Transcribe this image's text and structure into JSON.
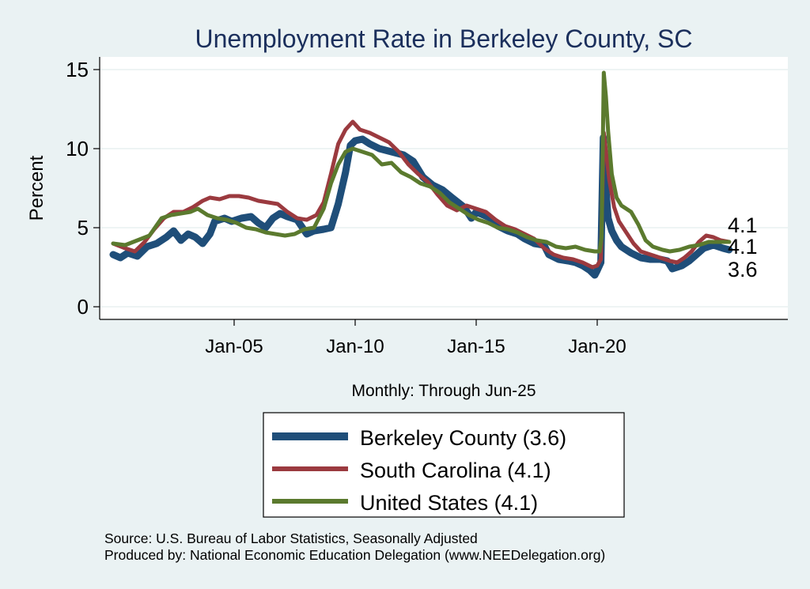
{
  "chart_data": {
    "type": "line",
    "title": "Unemployment Rate in Berkeley  County, SC",
    "xlabel": "Monthly: Through Jun-25",
    "ylabel": "Percent",
    "ylim": [
      0,
      15
    ],
    "yticks": [
      0,
      5,
      10,
      15
    ],
    "xlim": [
      2000.0,
      2026.8
    ],
    "xticks": [
      {
        "label": "Jan-05",
        "value": 2005
      },
      {
        "label": "Jan-10",
        "value": 2010
      },
      {
        "label": "Jan-15",
        "value": 2015
      },
      {
        "label": "Jan-20",
        "value": 2020
      }
    ],
    "grid": true,
    "legend_position": "bottom",
    "end_labels": [
      "4.1",
      "4.1",
      "3.6"
    ],
    "series": [
      {
        "name": "Berkeley  County",
        "legend": "Berkeley  County (3.6)",
        "color": "#1f4e79",
        "points": [
          [
            2000.0,
            3.3
          ],
          [
            2000.3,
            3.1
          ],
          [
            2000.6,
            3.4
          ],
          [
            2001.0,
            3.2
          ],
          [
            2001.4,
            3.8
          ],
          [
            2001.8,
            4.0
          ],
          [
            2002.2,
            4.4
          ],
          [
            2002.5,
            4.8
          ],
          [
            2002.8,
            4.2
          ],
          [
            2003.1,
            4.6
          ],
          [
            2003.4,
            4.4
          ],
          [
            2003.7,
            4.0
          ],
          [
            2004.0,
            4.6
          ],
          [
            2004.2,
            5.4
          ],
          [
            2004.6,
            5.6
          ],
          [
            2004.9,
            5.4
          ],
          [
            2005.3,
            5.6
          ],
          [
            2005.7,
            5.7
          ],
          [
            2006.0,
            5.3
          ],
          [
            2006.3,
            5.0
          ],
          [
            2006.6,
            5.6
          ],
          [
            2006.9,
            5.9
          ],
          [
            2007.2,
            5.7
          ],
          [
            2007.6,
            5.5
          ],
          [
            2008.0,
            4.6
          ],
          [
            2008.3,
            4.8
          ],
          [
            2008.7,
            4.9
          ],
          [
            2009.0,
            5.0
          ],
          [
            2009.3,
            6.5
          ],
          [
            2009.6,
            8.5
          ],
          [
            2009.8,
            10.2
          ],
          [
            2010.0,
            10.5
          ],
          [
            2010.3,
            10.6
          ],
          [
            2010.6,
            10.3
          ],
          [
            2011.0,
            10.0
          ],
          [
            2011.5,
            9.8
          ],
          [
            2012.0,
            9.6
          ],
          [
            2012.4,
            9.2
          ],
          [
            2012.8,
            8.2
          ],
          [
            2013.2,
            7.7
          ],
          [
            2013.6,
            7.4
          ],
          [
            2014.0,
            6.9
          ],
          [
            2014.5,
            6.3
          ],
          [
            2014.8,
            5.6
          ],
          [
            2015.0,
            6.0
          ],
          [
            2015.3,
            5.8
          ],
          [
            2015.6,
            5.6
          ],
          [
            2015.9,
            5.1
          ],
          [
            2016.3,
            4.8
          ],
          [
            2016.7,
            4.6
          ],
          [
            2017.0,
            4.3
          ],
          [
            2017.4,
            4.0
          ],
          [
            2017.8,
            3.9
          ],
          [
            2018.0,
            3.3
          ],
          [
            2018.4,
            3.0
          ],
          [
            2018.8,
            2.9
          ],
          [
            2019.1,
            2.8
          ],
          [
            2019.4,
            2.6
          ],
          [
            2019.7,
            2.3
          ],
          [
            2019.9,
            2.0
          ],
          [
            2020.0,
            2.3
          ],
          [
            2020.15,
            2.8
          ],
          [
            2020.25,
            10.7
          ],
          [
            2020.33,
            8.0
          ],
          [
            2020.45,
            5.6
          ],
          [
            2020.6,
            4.8
          ],
          [
            2020.8,
            4.2
          ],
          [
            2021.0,
            3.8
          ],
          [
            2021.4,
            3.4
          ],
          [
            2021.8,
            3.1
          ],
          [
            2022.2,
            3.0
          ],
          [
            2022.6,
            3.0
          ],
          [
            2022.9,
            2.9
          ],
          [
            2023.1,
            2.4
          ],
          [
            2023.5,
            2.6
          ],
          [
            2023.8,
            2.9
          ],
          [
            2024.1,
            3.3
          ],
          [
            2024.4,
            3.7
          ],
          [
            2024.8,
            3.9
          ],
          [
            2025.0,
            3.8
          ],
          [
            2025.2,
            3.7
          ],
          [
            2025.45,
            3.6
          ]
        ]
      },
      {
        "name": "South Carolina",
        "legend": "South Carolina (4.1)",
        "color": "#9b3a3f",
        "points": [
          [
            2000.0,
            4.0
          ],
          [
            2000.5,
            3.7
          ],
          [
            2000.9,
            3.5
          ],
          [
            2001.3,
            4.1
          ],
          [
            2001.7,
            4.9
          ],
          [
            2002.1,
            5.6
          ],
          [
            2002.5,
            6.0
          ],
          [
            2002.9,
            6.0
          ],
          [
            2003.3,
            6.3
          ],
          [
            2003.7,
            6.7
          ],
          [
            2004.0,
            6.9
          ],
          [
            2004.4,
            6.8
          ],
          [
            2004.8,
            7.0
          ],
          [
            2005.2,
            7.0
          ],
          [
            2005.6,
            6.9
          ],
          [
            2006.0,
            6.7
          ],
          [
            2006.4,
            6.6
          ],
          [
            2006.8,
            6.5
          ],
          [
            2007.2,
            6.0
          ],
          [
            2007.6,
            5.6
          ],
          [
            2008.0,
            5.5
          ],
          [
            2008.4,
            5.8
          ],
          [
            2008.7,
            6.6
          ],
          [
            2009.0,
            8.4
          ],
          [
            2009.3,
            10.3
          ],
          [
            2009.6,
            11.2
          ],
          [
            2009.9,
            11.7
          ],
          [
            2010.2,
            11.2
          ],
          [
            2010.6,
            11.0
          ],
          [
            2011.0,
            10.7
          ],
          [
            2011.4,
            10.4
          ],
          [
            2011.8,
            9.8
          ],
          [
            2012.2,
            9.0
          ],
          [
            2012.6,
            8.4
          ],
          [
            2013.0,
            7.9
          ],
          [
            2013.4,
            7.1
          ],
          [
            2013.8,
            6.4
          ],
          [
            2014.2,
            6.1
          ],
          [
            2014.6,
            6.4
          ],
          [
            2015.0,
            6.2
          ],
          [
            2015.4,
            6.0
          ],
          [
            2015.8,
            5.5
          ],
          [
            2016.2,
            5.1
          ],
          [
            2016.6,
            4.9
          ],
          [
            2017.0,
            4.6
          ],
          [
            2017.4,
            4.3
          ],
          [
            2017.8,
            3.7
          ],
          [
            2018.2,
            3.3
          ],
          [
            2018.6,
            3.1
          ],
          [
            2019.0,
            3.0
          ],
          [
            2019.4,
            2.8
          ],
          [
            2019.8,
            2.5
          ],
          [
            2020.0,
            2.6
          ],
          [
            2020.15,
            3.0
          ],
          [
            2020.27,
            11.0
          ],
          [
            2020.35,
            10.0
          ],
          [
            2020.5,
            8.0
          ],
          [
            2020.7,
            6.3
          ],
          [
            2020.9,
            5.4
          ],
          [
            2021.2,
            4.7
          ],
          [
            2021.5,
            4.0
          ],
          [
            2021.8,
            3.5
          ],
          [
            2022.2,
            3.3
          ],
          [
            2022.6,
            3.1
          ],
          [
            2023.0,
            2.9
          ],
          [
            2023.3,
            2.8
          ],
          [
            2023.6,
            3.1
          ],
          [
            2023.9,
            3.5
          ],
          [
            2024.2,
            4.1
          ],
          [
            2024.5,
            4.5
          ],
          [
            2024.8,
            4.4
          ],
          [
            2025.1,
            4.2
          ],
          [
            2025.45,
            4.1
          ]
        ]
      },
      {
        "name": "United States",
        "legend": "United States (4.1)",
        "color": "#5b7a2e",
        "points": [
          [
            2000.0,
            4.0
          ],
          [
            2000.5,
            3.9
          ],
          [
            2001.0,
            4.2
          ],
          [
            2001.5,
            4.5
          ],
          [
            2002.0,
            5.6
          ],
          [
            2002.4,
            5.8
          ],
          [
            2002.8,
            5.9
          ],
          [
            2003.2,
            6.0
          ],
          [
            2003.5,
            6.2
          ],
          [
            2003.9,
            5.8
          ],
          [
            2004.3,
            5.6
          ],
          [
            2004.7,
            5.5
          ],
          [
            2005.1,
            5.3
          ],
          [
            2005.5,
            5.0
          ],
          [
            2005.9,
            4.9
          ],
          [
            2006.3,
            4.7
          ],
          [
            2006.7,
            4.6
          ],
          [
            2007.1,
            4.5
          ],
          [
            2007.5,
            4.6
          ],
          [
            2007.9,
            4.9
          ],
          [
            2008.3,
            5.0
          ],
          [
            2008.7,
            6.2
          ],
          [
            2009.0,
            7.8
          ],
          [
            2009.3,
            9.0
          ],
          [
            2009.6,
            9.8
          ],
          [
            2009.9,
            10.0
          ],
          [
            2010.3,
            9.8
          ],
          [
            2010.7,
            9.6
          ],
          [
            2011.1,
            9.0
          ],
          [
            2011.5,
            9.1
          ],
          [
            2011.9,
            8.5
          ],
          [
            2012.3,
            8.2
          ],
          [
            2012.7,
            7.8
          ],
          [
            2013.1,
            7.6
          ],
          [
            2013.5,
            7.2
          ],
          [
            2013.9,
            6.6
          ],
          [
            2014.3,
            6.2
          ],
          [
            2014.7,
            5.8
          ],
          [
            2015.1,
            5.5
          ],
          [
            2015.5,
            5.3
          ],
          [
            2015.9,
            5.0
          ],
          [
            2016.3,
            4.9
          ],
          [
            2016.7,
            4.7
          ],
          [
            2017.1,
            4.4
          ],
          [
            2017.5,
            4.2
          ],
          [
            2017.9,
            4.1
          ],
          [
            2018.3,
            3.8
          ],
          [
            2018.7,
            3.7
          ],
          [
            2019.1,
            3.8
          ],
          [
            2019.5,
            3.6
          ],
          [
            2019.9,
            3.5
          ],
          [
            2020.1,
            3.5
          ],
          [
            2020.18,
            4.4
          ],
          [
            2020.27,
            14.8
          ],
          [
            2020.36,
            13.3
          ],
          [
            2020.45,
            11.1
          ],
          [
            2020.6,
            8.4
          ],
          [
            2020.8,
            6.9
          ],
          [
            2021.0,
            6.4
          ],
          [
            2021.4,
            6.0
          ],
          [
            2021.7,
            5.2
          ],
          [
            2022.0,
            4.2
          ],
          [
            2022.3,
            3.8
          ],
          [
            2022.7,
            3.6
          ],
          [
            2023.0,
            3.5
          ],
          [
            2023.4,
            3.6
          ],
          [
            2023.8,
            3.8
          ],
          [
            2024.2,
            3.9
          ],
          [
            2024.6,
            4.1
          ],
          [
            2025.0,
            4.1
          ],
          [
            2025.45,
            4.1
          ]
        ]
      }
    ]
  },
  "footer": {
    "source": "Source: U.S. Bureau of Labor Statistics, Seasonally Adjusted",
    "produced": "Produced by: National Economic Education Delegation (www.NEEDelegation.org)"
  }
}
